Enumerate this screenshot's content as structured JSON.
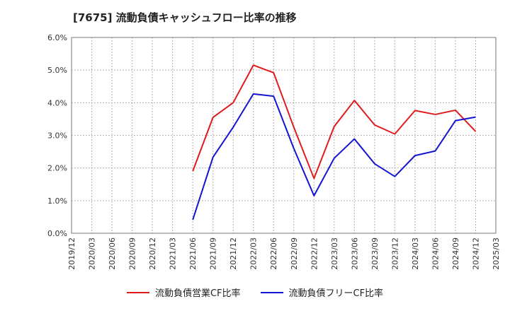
{
  "chart_data": {
    "type": "line",
    "title": "[7675]  流動負債キャッシュフロー比率の推移",
    "x_ticks": [
      "2019/12",
      "2020/03",
      "2020/06",
      "2020/09",
      "2020/12",
      "2021/03",
      "2021/06",
      "2021/09",
      "2021/12",
      "2022/03",
      "2022/06",
      "2022/09",
      "2022/12",
      "2023/03",
      "2023/06",
      "2023/09",
      "2023/12",
      "2024/03",
      "2024/06",
      "2024/09",
      "2024/12",
      "2025/03"
    ],
    "y_ticks": [
      "0.0%",
      "1.0%",
      "2.0%",
      "3.0%",
      "4.0%",
      "5.0%",
      "6.0%"
    ],
    "ylim": [
      0,
      6
    ],
    "grid": true,
    "legend_position": "bottom",
    "x": [
      "2021/06",
      "2021/09",
      "2021/12",
      "2022/03",
      "2022/06",
      "2022/09",
      "2022/12",
      "2023/03",
      "2023/06",
      "2023/09",
      "2023/12",
      "2024/03",
      "2024/06",
      "2024/09",
      "2024/12"
    ],
    "series": [
      {
        "name": "流動負債営業CF比率",
        "color": "#e01b1b",
        "values": [
          1.9,
          3.55,
          4.0,
          5.15,
          4.92,
          3.25,
          1.68,
          3.27,
          4.07,
          3.32,
          3.04,
          3.76,
          3.64,
          3.77,
          3.12
        ]
      },
      {
        "name": "流動負債フリーCF比率",
        "color": "#1414d2",
        "values": [
          0.41,
          2.33,
          3.25,
          4.27,
          4.2,
          2.6,
          1.15,
          2.3,
          2.89,
          2.13,
          1.74,
          2.38,
          2.52,
          3.45,
          3.56
        ]
      }
    ]
  }
}
